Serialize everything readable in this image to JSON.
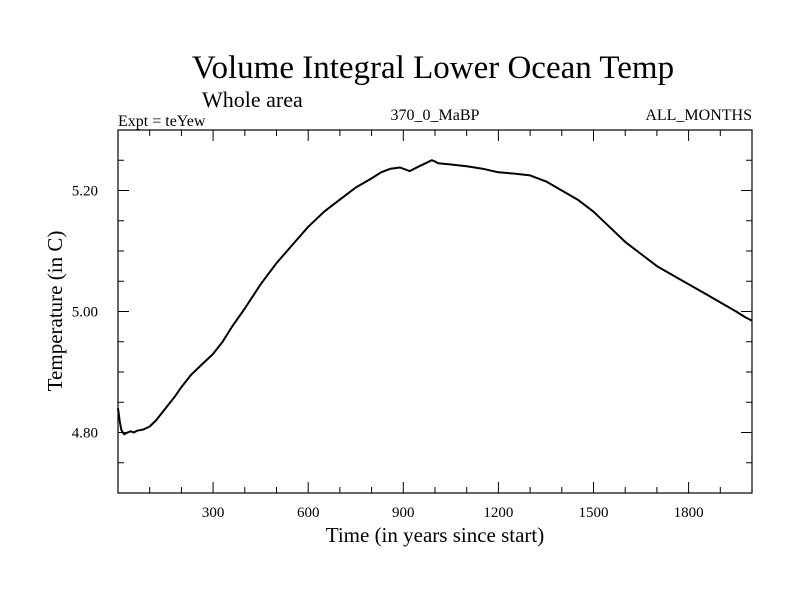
{
  "chart_data": {
    "type": "line",
    "title": "Volume Integral Lower Ocean Temp",
    "subtitle": "Whole area",
    "left_note": "Expt = teYew",
    "center_note": "370_0_MaBP",
    "right_note": "ALL_MONTHS",
    "xlabel": "Time (in years since start)",
    "ylabel": "Temperature (in C)",
    "xlim": [
      0,
      2000
    ],
    "ylim": [
      4.7,
      5.3
    ],
    "x_ticks_labeled": [
      300,
      600,
      900,
      1200,
      1500,
      1800
    ],
    "x_tick_labels": [
      "300",
      "600",
      "900",
      "1200",
      "1500",
      "1800"
    ],
    "x_minor_step": 100,
    "y_ticks_labeled": [
      4.8,
      5.0,
      5.2
    ],
    "y_tick_labels": [
      "4.80",
      "5.00",
      "5.20"
    ],
    "y_minor_step": 0.05,
    "series": [
      {
        "name": "Volume Integral Lower Ocean Temp",
        "x": [
          0,
          5,
          10,
          15,
          20,
          30,
          40,
          50,
          60,
          80,
          100,
          120,
          150,
          180,
          200,
          230,
          260,
          300,
          330,
          360,
          400,
          450,
          500,
          550,
          600,
          650,
          700,
          750,
          800,
          830,
          860,
          890,
          920,
          950,
          970,
          990,
          1000,
          1010,
          1050,
          1100,
          1150,
          1200,
          1250,
          1300,
          1350,
          1400,
          1450,
          1500,
          1550,
          1600,
          1650,
          1700,
          1750,
          1800,
          1850,
          1900,
          1950,
          1980,
          2000
        ],
        "values": [
          4.84,
          4.82,
          4.805,
          4.8,
          4.797,
          4.8,
          4.802,
          4.8,
          4.803,
          4.805,
          4.81,
          4.82,
          4.84,
          4.86,
          4.875,
          4.895,
          4.91,
          4.93,
          4.95,
          4.975,
          5.005,
          5.045,
          5.08,
          5.11,
          5.14,
          5.165,
          5.185,
          5.205,
          5.22,
          5.23,
          5.236,
          5.238,
          5.232,
          5.24,
          5.245,
          5.25,
          5.248,
          5.245,
          5.243,
          5.24,
          5.236,
          5.23,
          5.228,
          5.225,
          5.215,
          5.2,
          5.185,
          5.165,
          5.14,
          5.115,
          5.095,
          5.075,
          5.06,
          5.045,
          5.03,
          5.015,
          5.0,
          4.99,
          4.985
        ]
      }
    ]
  }
}
